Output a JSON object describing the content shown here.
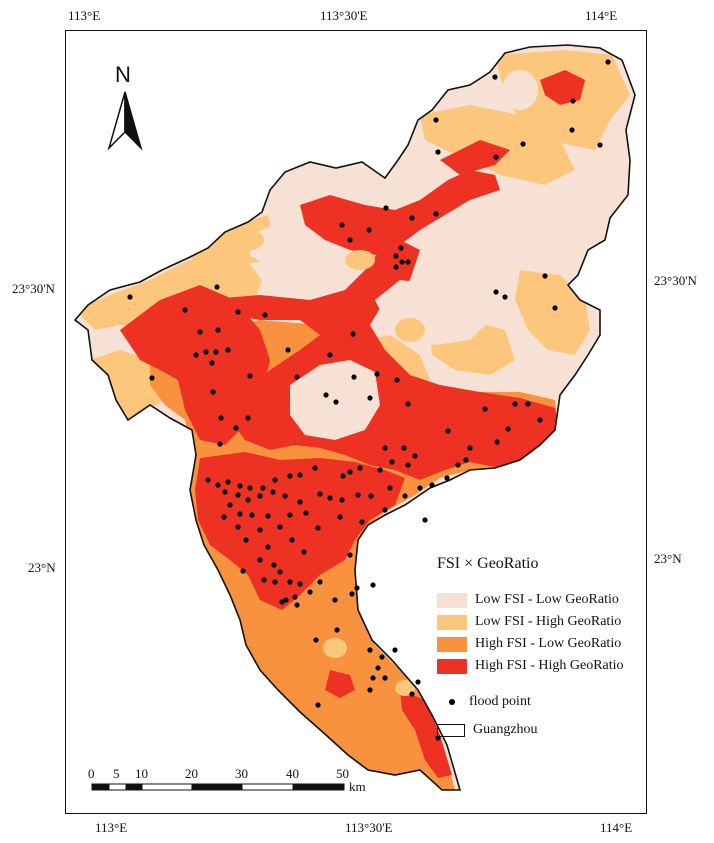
{
  "ticks": {
    "top": [
      "113°E",
      "113°30'E",
      "114°E"
    ],
    "bottom": [
      "113°E",
      "113°30'E",
      "114°E"
    ],
    "left": [
      "23°30'N",
      "23°N"
    ],
    "right": [
      "23°30'N",
      "23°N"
    ]
  },
  "north_label": "N",
  "legend": {
    "title": "FSI × GeoRatio",
    "classes": [
      {
        "label": "Low FSI - Low GeoRatio",
        "color": "#f7e1d5"
      },
      {
        "label": "Low FSI - High GeoRatio",
        "color": "#fcc67c"
      },
      {
        "label": "High FSI - Low GeoRatio",
        "color": "#f8923e"
      },
      {
        "label": "High FSI - High GeoRatio",
        "color": "#ed3123"
      }
    ],
    "point_label": "flood point",
    "boundary_label": "Guangzhou"
  },
  "scalebar": {
    "labels": [
      "0",
      "5",
      "10",
      "20",
      "30",
      "40",
      "50"
    ],
    "unit": "km"
  }
}
